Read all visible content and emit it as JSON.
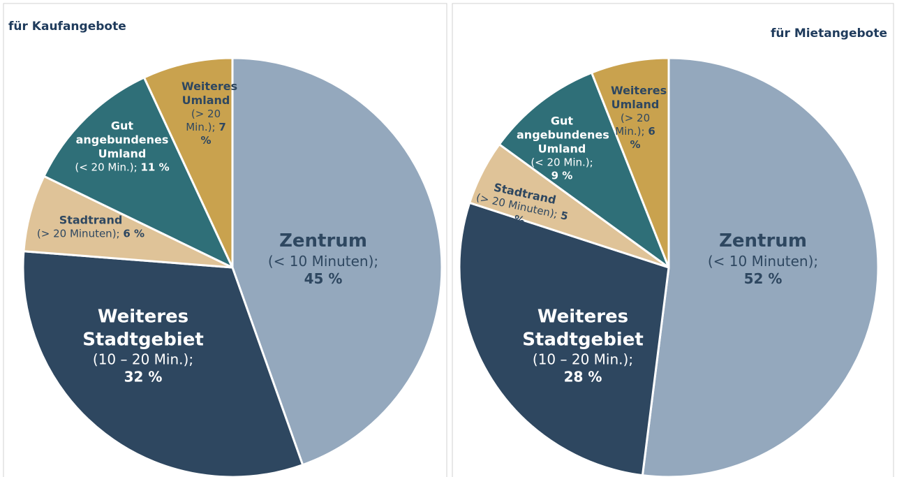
{
  "chart_data": [
    {
      "type": "pie",
      "title": "für Kaufangebote",
      "categories": [
        "Zentrum",
        "Weiteres Stadtgebiet",
        "Stadtrand",
        "Gut angebundenes Umland",
        "Weiteres Umland"
      ],
      "annotations": [
        "(< 10 Minuten);",
        "(10 – 20 Min.);",
        "(> 20 Minuten);",
        "(< 20 Min.);",
        "(> 20 Min.);"
      ],
      "values": [
        45,
        32,
        6,
        11,
        7
      ],
      "value_labels": [
        "45 %",
        "32 %",
        "6 %",
        "11 %",
        "7 %"
      ],
      "colors": [
        "#94a8bd",
        "#2e4760",
        "#dfc398",
        "#2f6f78",
        "#c9a24e"
      ]
    },
    {
      "type": "pie",
      "title": "für Mietangebote",
      "categories": [
        "Zentrum",
        "Weiteres Stadtgebiet",
        "Stadtrand",
        "Gut angebundenes Umland",
        "Weiteres Umland"
      ],
      "annotations": [
        "(< 10 Minuten);",
        "(10 – 20 Min.);",
        "(> 20 Minuten);",
        "(< 20 Min.);",
        "(> 20 Min.);"
      ],
      "values": [
        52,
        28,
        5,
        9,
        6
      ],
      "value_labels": [
        "52 %",
        "28 %",
        "5 %",
        "9 %",
        "6 %"
      ],
      "colors": [
        "#94a8bd",
        "#2e4760",
        "#dfc398",
        "#2f6f78",
        "#c9a24e"
      ]
    }
  ]
}
